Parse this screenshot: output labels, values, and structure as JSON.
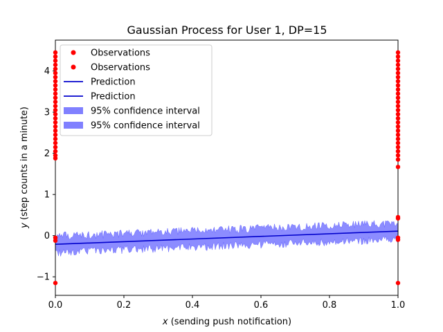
{
  "chart_data": {
    "type": "line",
    "title": "Gaussian Process for User 1, DP=15",
    "xlabel_var": "x",
    "xlabel_text": " (sending push notification)",
    "ylabel_var": "y",
    "ylabel_text": " (step counts in a minute)",
    "xlim": [
      0.0,
      1.0
    ],
    "ylim": [
      -1.45,
      4.75
    ],
    "x_ticks": [
      0.0,
      0.2,
      0.4,
      0.6,
      0.8,
      1.0
    ],
    "x_tick_labels": [
      "0.0",
      "0.2",
      "0.4",
      "0.6",
      "0.8",
      "1.0"
    ],
    "y_ticks": [
      -1,
      0,
      1,
      2,
      3,
      4
    ],
    "y_tick_labels": [
      "−1",
      "0",
      "1",
      "2",
      "3",
      "4"
    ],
    "grid": false,
    "legend_position": "upper-left",
    "colors": {
      "observations": "#ff0000",
      "prediction": "#0000cc",
      "confidence": "#8080ff"
    },
    "series": [
      {
        "name": "Observations",
        "kind": "scatter",
        "points": [
          [
            0,
            4.45
          ],
          [
            0,
            4.35
          ],
          [
            0,
            4.25
          ],
          [
            0,
            4.15
          ],
          [
            0,
            4.05
          ],
          [
            0,
            3.95
          ],
          [
            0,
            3.85
          ],
          [
            0,
            3.75
          ],
          [
            0,
            3.65
          ],
          [
            0,
            3.55
          ],
          [
            0,
            3.45
          ],
          [
            0,
            3.35
          ],
          [
            0,
            3.25
          ],
          [
            0,
            3.15
          ],
          [
            0,
            3.05
          ],
          [
            0,
            2.95
          ],
          [
            0,
            2.85
          ],
          [
            0,
            2.75
          ],
          [
            0,
            2.65
          ],
          [
            0,
            2.55
          ],
          [
            0,
            2.45
          ],
          [
            0,
            2.35
          ],
          [
            0,
            2.25
          ],
          [
            0,
            2.15
          ],
          [
            0,
            2.05
          ],
          [
            0,
            1.95
          ],
          [
            0,
            1.88
          ],
          [
            0,
            -0.05
          ],
          [
            0,
            -0.12
          ],
          [
            0,
            -1.15
          ],
          [
            1,
            4.45
          ],
          [
            1,
            4.35
          ],
          [
            1,
            4.25
          ],
          [
            1,
            4.15
          ],
          [
            1,
            4.05
          ],
          [
            1,
            3.95
          ],
          [
            1,
            3.85
          ],
          [
            1,
            3.75
          ],
          [
            1,
            3.65
          ],
          [
            1,
            3.55
          ],
          [
            1,
            3.45
          ],
          [
            1,
            3.35
          ],
          [
            1,
            3.25
          ],
          [
            1,
            3.15
          ],
          [
            1,
            3.05
          ],
          [
            1,
            2.95
          ],
          [
            1,
            2.85
          ],
          [
            1,
            2.75
          ],
          [
            1,
            2.65
          ],
          [
            1,
            2.55
          ],
          [
            1,
            2.45
          ],
          [
            1,
            2.35
          ],
          [
            1,
            2.25
          ],
          [
            1,
            2.15
          ],
          [
            1,
            2.05
          ],
          [
            1,
            1.95
          ],
          [
            1,
            1.85
          ],
          [
            1,
            1.67
          ],
          [
            1,
            0.45
          ],
          [
            1,
            0.42
          ],
          [
            1,
            -0.05
          ],
          [
            1,
            -0.1
          ],
          [
            1,
            -1.15
          ]
        ]
      },
      {
        "name": "Observations",
        "kind": "scatter",
        "points": []
      },
      {
        "name": "Prediction",
        "kind": "line",
        "points": [
          [
            0.0,
            -0.21
          ],
          [
            1.0,
            0.11
          ]
        ]
      },
      {
        "name": "Prediction",
        "kind": "line",
        "points": []
      },
      {
        "name": "95% confidence interval",
        "kind": "band",
        "center": [
          [
            0.0,
            -0.21
          ],
          [
            1.0,
            0.11
          ]
        ],
        "half_width": 0.22,
        "noise_amplitude": 0.18
      },
      {
        "name": "95% confidence interval",
        "kind": "band",
        "center": [],
        "half_width": 0,
        "noise_amplitude": 0
      }
    ],
    "legend": [
      {
        "label": "Observations",
        "marker": "dot",
        "color": "#ff0000"
      },
      {
        "label": "Observations",
        "marker": "dot",
        "color": "#ff0000"
      },
      {
        "label": "Prediction",
        "marker": "line",
        "color": "#0000cc"
      },
      {
        "label": "Prediction",
        "marker": "line",
        "color": "#0000cc"
      },
      {
        "label": "95% confidence interval",
        "marker": "patch",
        "color": "#8080ff"
      },
      {
        "label": "95% confidence interval",
        "marker": "patch",
        "color": "#8080ff"
      }
    ]
  }
}
